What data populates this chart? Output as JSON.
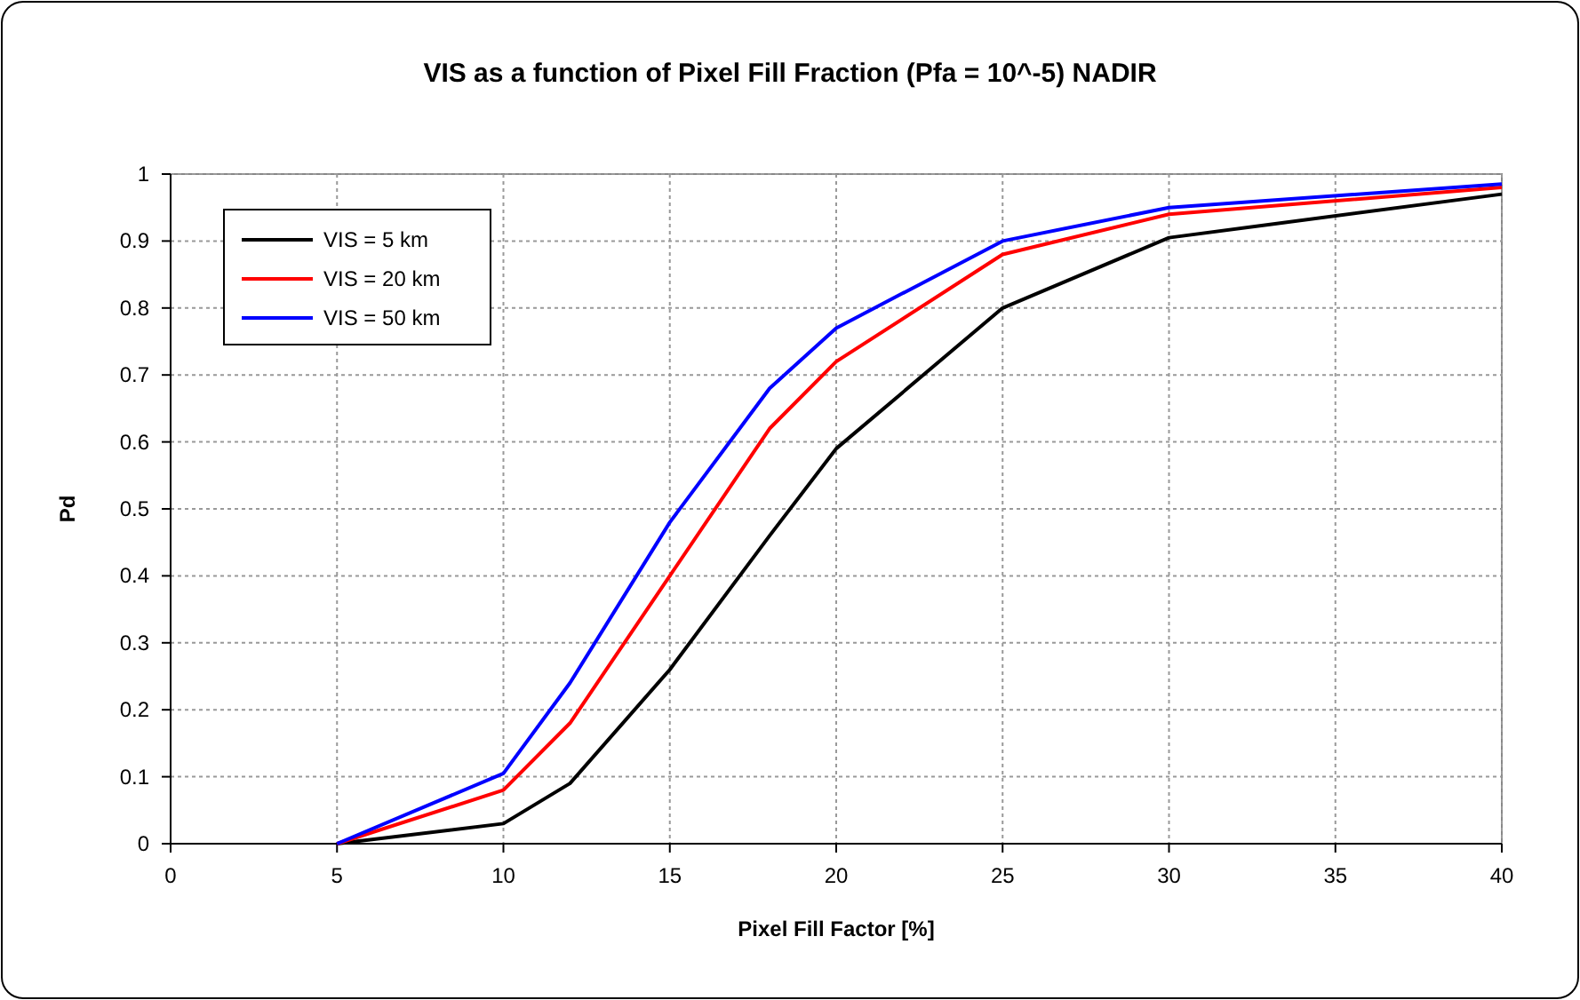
{
  "chart_data": {
    "type": "line",
    "title": "VIS as a function of Pixel Fill Fraction (Pfa = 10^-5) NADIR",
    "xlabel": "Pixel Fill Factor [%]",
    "ylabel": "Pd",
    "x": [
      5,
      10,
      12,
      15,
      18,
      20,
      25,
      30,
      40
    ],
    "series": [
      {
        "name": "VIS = 5 km",
        "color": "#000000",
        "values": [
          0,
          0.03,
          0.09,
          0.26,
          0.46,
          0.59,
          0.8,
          0.905,
          0.97
        ]
      },
      {
        "name": "VIS = 20 km",
        "color": "#ff0000",
        "values": [
          0,
          0.08,
          0.18,
          0.4,
          0.62,
          0.72,
          0.88,
          0.94,
          0.98
        ]
      },
      {
        "name": "VIS = 50 km",
        "color": "#0000ff",
        "values": [
          0,
          0.105,
          0.24,
          0.48,
          0.68,
          0.77,
          0.9,
          0.95,
          0.985
        ]
      }
    ],
    "xlim": [
      0,
      40
    ],
    "xticks": [
      0,
      5,
      10,
      15,
      20,
      25,
      30,
      35,
      40
    ],
    "ylim": [
      0,
      1
    ],
    "yticks": [
      0,
      0.1,
      0.2,
      0.3,
      0.4,
      0.5,
      0.6,
      0.7,
      0.8,
      0.9,
      1
    ],
    "grid": true,
    "legend": "top left",
    "marker": "none",
    "line_style": "solid"
  }
}
